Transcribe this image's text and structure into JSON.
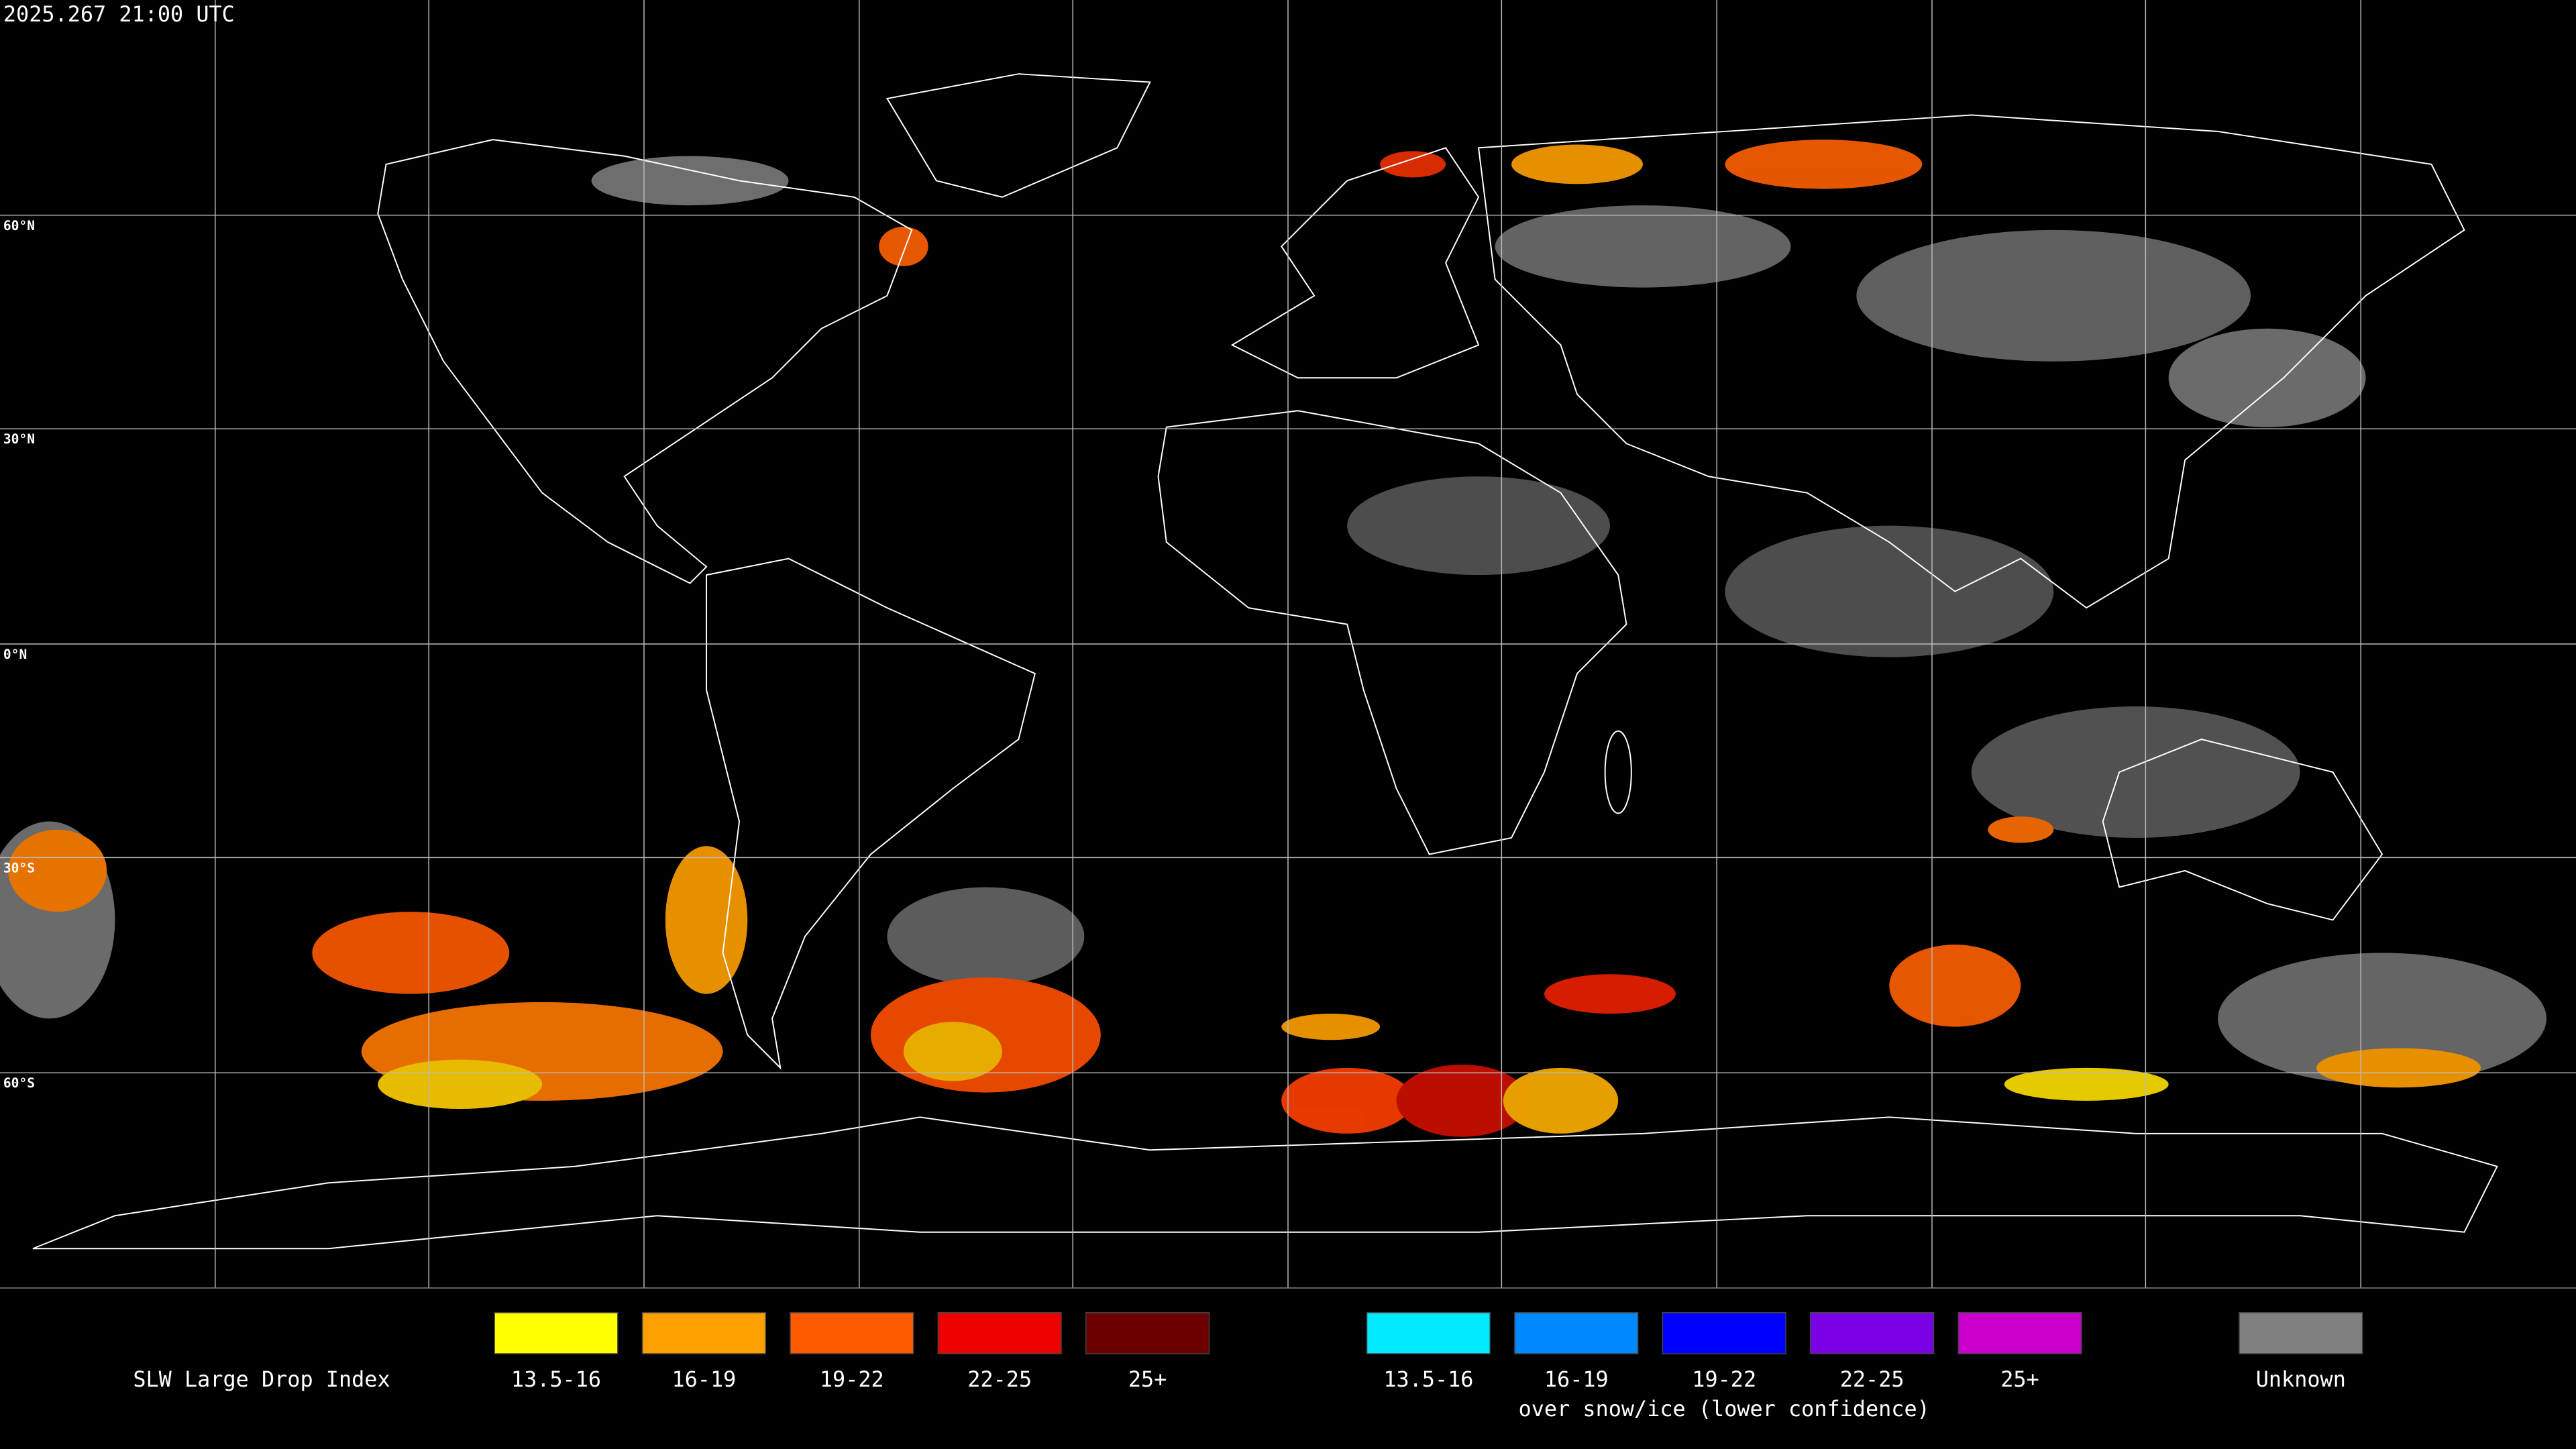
{
  "header": {
    "timestamp": "2025.267 21:00 UTC"
  },
  "map": {
    "latitude_labels": [
      "60°N",
      "30°N",
      "0°N",
      "30°S",
      "60°S"
    ]
  },
  "legend": {
    "title": "SLW Large Drop Index",
    "groups": [
      {
        "items": [
          {
            "label": "13.5-16",
            "color": "#ffff00"
          },
          {
            "label": "16-19",
            "color": "#ffa000"
          },
          {
            "label": "19-22",
            "color": "#ff5a00"
          },
          {
            "label": "22-25",
            "color": "#ee0000"
          },
          {
            "label": "25+",
            "color": "#6a0000"
          }
        ]
      },
      {
        "items": [
          {
            "label": "13.5-16",
            "color": "#00eaff"
          },
          {
            "label": "16-19",
            "color": "#0088ff"
          },
          {
            "label": "19-22",
            "color": "#0000ff"
          },
          {
            "label": "22-25",
            "color": "#7a00e6"
          },
          {
            "label": "25+",
            "color": "#cc00cc"
          }
        ],
        "caption": "over snow/ice (lower confidence)"
      }
    ],
    "unknown": {
      "label": "Unknown",
      "color": "#808080"
    }
  }
}
